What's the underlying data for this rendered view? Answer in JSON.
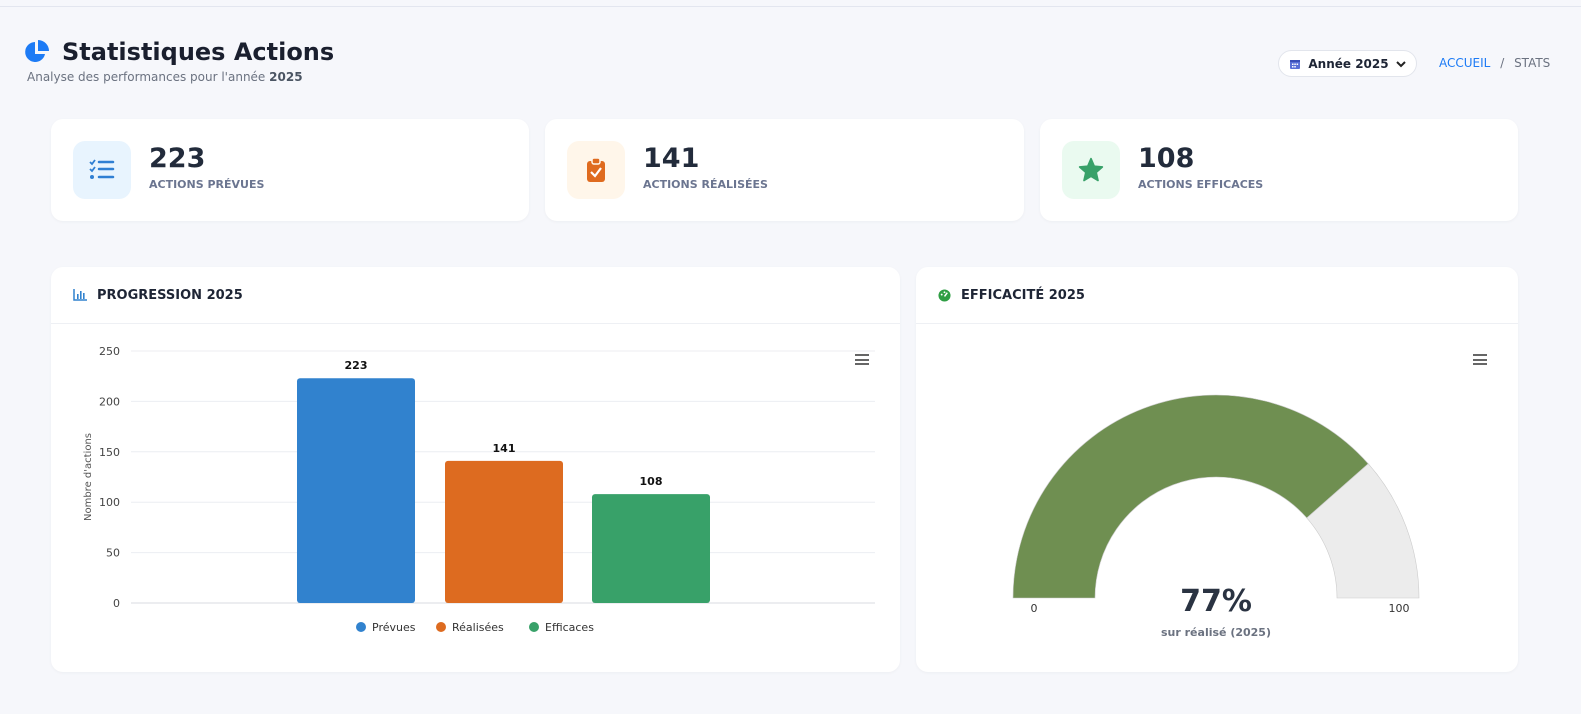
{
  "header": {
    "title": "Statistiques Actions",
    "subtitle": "Analyse des performances pour l'année",
    "subtitle_year": "2025",
    "year_button": "Année 2025",
    "breadcrumb": {
      "home": "ACCUEIL",
      "sep": "/",
      "current": "STATS"
    }
  },
  "stats": [
    {
      "value": "223",
      "label": "ACTIONS PRÉVUES",
      "icon": "list-check-icon",
      "color": "#2f7fd3",
      "bg": "#e8f4fe"
    },
    {
      "value": "141",
      "label": "ACTIONS RÉALISÉES",
      "icon": "clipboard-check-icon",
      "color": "#df6b1f",
      "bg": "#fff6ea"
    },
    {
      "value": "108",
      "label": "ACTIONS EFFICACES",
      "icon": "star-icon",
      "color": "#38a169",
      "bg": "#eafaf0"
    }
  ],
  "progression": {
    "title": "PROGRESSION 2025"
  },
  "efficacite": {
    "title": "EFFICACITÉ 2025",
    "value_label": "77%",
    "caption": "sur réalisé (2025)",
    "min_label": "0",
    "max_label": "100"
  },
  "chart_data": [
    {
      "type": "bar",
      "title": "PROGRESSION 2025",
      "categories": [
        "Prévues",
        "Réalisées",
        "Efficaces"
      ],
      "values": [
        223,
        141,
        108
      ],
      "colors": [
        "#3182ce",
        "#dd6b20",
        "#38a169"
      ],
      "ylabel": "Nombre d'actions",
      "ylim": [
        0,
        250
      ],
      "yticks": [
        0,
        50,
        100,
        150,
        200,
        250
      ],
      "legend": "bottom",
      "grid": true
    },
    {
      "type": "gauge",
      "title": "EFFICACITÉ 2025",
      "value": 77,
      "min": 0,
      "max": 100,
      "colors": [
        "#6f8f51",
        "#ececec"
      ]
    }
  ]
}
